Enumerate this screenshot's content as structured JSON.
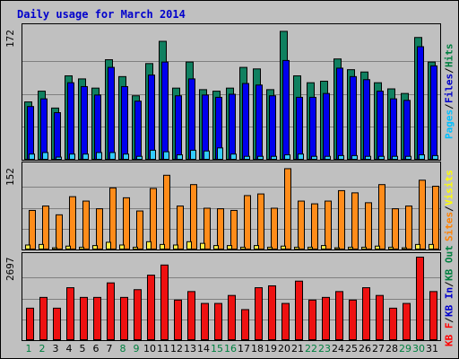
{
  "chart_data": {
    "type": "bar",
    "title": "Daily usage for March 2014",
    "categories": [
      "1",
      "2",
      "3",
      "4",
      "5",
      "6",
      "7",
      "8",
      "9",
      "10",
      "11",
      "12",
      "13",
      "14",
      "15",
      "16",
      "17",
      "18",
      "19",
      "20",
      "21",
      "22",
      "23",
      "24",
      "25",
      "26",
      "27",
      "28",
      "29",
      "30",
      "31"
    ],
    "weekend_days": [
      1,
      2,
      8,
      9,
      15,
      16,
      22,
      23,
      29,
      30
    ],
    "grid": true,
    "panels": [
      {
        "ymax_label": "172",
        "ylim": [
          0,
          172
        ],
        "legend": [
          {
            "label": "Hits",
            "color": "#008040"
          },
          {
            "label": "Files",
            "color": "#0000cc"
          },
          {
            "label": "Pages",
            "color": "#00c0ff"
          }
        ],
        "series": [
          {
            "name": "Hits",
            "color": "#108060",
            "values": [
              76,
              90,
              68,
              110,
              106,
              94,
              131,
              109,
              84,
              126,
              155,
              94,
              128,
              92,
              90,
              94,
              121,
              119,
              92,
              168,
              110,
              101,
              103,
              132,
              118,
              115,
              101,
              93,
              87,
              160,
              128
            ]
          },
          {
            "name": "Files",
            "color": "#0000ee",
            "values": [
              70,
              80,
              62,
              101,
              96,
              85,
              121,
              96,
              77,
              111,
              128,
              84,
              106,
              85,
              82,
              86,
              100,
              98,
              84,
              130,
              82,
              82,
              87,
              120,
              109,
              105,
              90,
              80,
              78,
              148,
              123
            ]
          },
          {
            "name": "Pages",
            "color": "#33ccff",
            "values": [
              8,
              10,
              4,
              8,
              8,
              10,
              10,
              8,
              5,
              13,
              11,
              7,
              13,
              12,
              16,
              8,
              5,
              5,
              5,
              7,
              8,
              5,
              5,
              6,
              6,
              5,
              5,
              5,
              5,
              7,
              6
            ]
          }
        ]
      },
      {
        "ymax_label": "152",
        "ylim": [
          0,
          152
        ],
        "legend": [
          {
            "label": "Visits",
            "color": "#ffff00"
          },
          {
            "label": "Sites",
            "color": "#ff8000"
          }
        ],
        "series": [
          {
            "name": "Sites",
            "color": "#ff8c1a",
            "values": [
              72,
              80,
              64,
              97,
              89,
              75,
              113,
              95,
              71,
              112,
              136,
              80,
              119,
              76,
              75,
              72,
              99,
              102,
              76,
              148,
              89,
              84,
              89,
              108,
              104,
              86,
              119,
              75,
              80,
              127,
              116
            ]
          },
          {
            "name": "Visits",
            "color": "#ffee44",
            "values": [
              9,
              10,
              4,
              7,
              5,
              8,
              14,
              9,
              5,
              15,
              10,
              9,
              15,
              12,
              8,
              8,
              5,
              8,
              5,
              7,
              5,
              5,
              8,
              4,
              5,
              5,
              7,
              5,
              4,
              10,
              10
            ]
          }
        ]
      },
      {
        "ymax_label": "2697",
        "ylim": [
          0,
          2697
        ],
        "legend": [
          {
            "label": "KB F",
            "color": "#ff0000"
          },
          {
            "label": "KB In",
            "color": "#0000cc"
          },
          {
            "label": "KB Out",
            "color": "#008040"
          }
        ],
        "series": [
          {
            "name": "KB F",
            "color": "#ee1111",
            "values": [
              1048,
              1396,
              1048,
              1709,
              1396,
              1396,
              1865,
              1396,
              1646,
              2115,
              2442,
              1310,
              1585,
              1201,
              1201,
              1459,
              1002,
              1709,
              1770,
              1201,
              1922,
              1310,
              1396,
              1585,
              1310,
              1709,
              1459,
              1048,
              1201,
              2697,
              1585
            ]
          }
        ]
      }
    ]
  }
}
